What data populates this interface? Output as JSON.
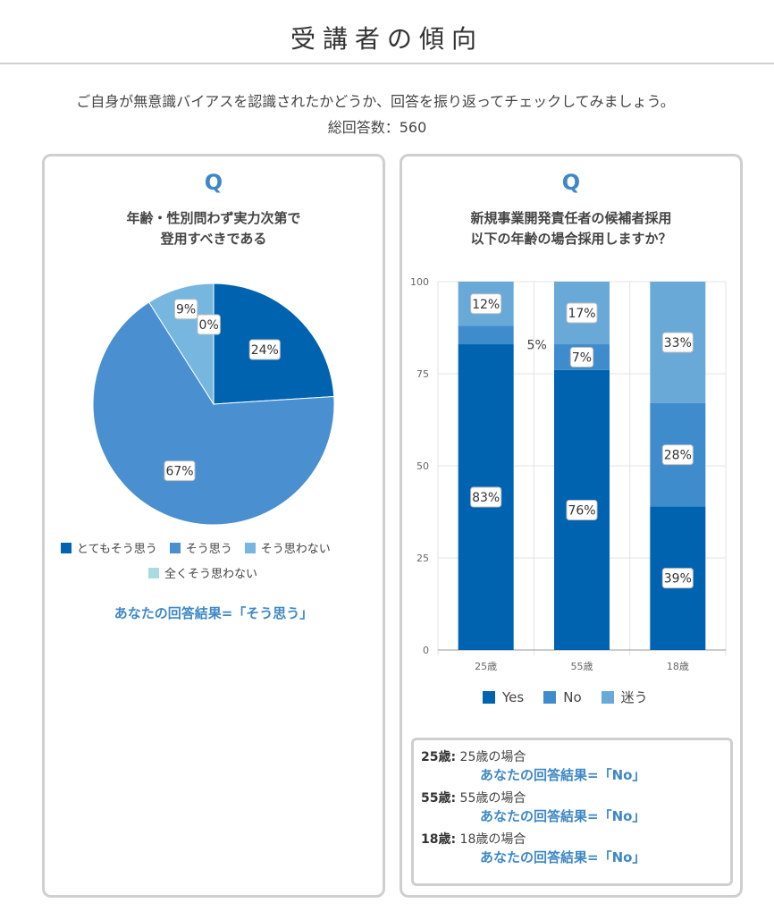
{
  "page": {
    "title": "受講者の傾向",
    "intro": "ご自身が無意識バイアスを認識されたかどうか、回答を振り返ってチェックしてみましょう。",
    "total_label": "総回答数：560"
  },
  "left_card": {
    "q_mark": "Q",
    "question_line1": "年齢・性別問わず実力次第で",
    "question_line2": "登用すべきである",
    "answer": "あなたの回答結果=「そう思う」"
  },
  "right_card": {
    "q_mark": "Q",
    "question_line1": "新規事業開発責任者の候補者採用",
    "question_line2": "以下の年齢の場合採用しますか？",
    "notes": [
      {
        "key": "25歳:",
        "text": " 25歳の場合",
        "answer": "あなたの回答結果=「No」"
      },
      {
        "key": "55歳:",
        "text": " 55歳の場合",
        "answer": "あなたの回答結果=「No」"
      },
      {
        "key": "18歳:",
        "text": " 18歳の場合",
        "answer": "あなたの回答結果=「No」"
      }
    ]
  },
  "chart_data": [
    {
      "type": "pie",
      "title": "年齢・性別問わず実力次第で登用すべきである",
      "categories": [
        "とてもそう思う",
        "そう思う",
        "そう思わない",
        "全くそう思わない"
      ],
      "values": [
        24,
        67,
        9,
        0
      ],
      "labels": [
        "24%",
        "67%",
        "9%",
        "0%"
      ],
      "colors": [
        "#0063b0",
        "#4a8fcf",
        "#76b6df",
        "#a8dce0"
      ],
      "legend_position": "bottom"
    },
    {
      "type": "bar",
      "stacked": true,
      "title": "新規事業開発責任者の候補者採用以下の年齢の場合採用しますか？",
      "categories": [
        "25歳",
        "55歳",
        "18歳"
      ],
      "series": [
        {
          "name": "Yes",
          "values": [
            83,
            76,
            39
          ],
          "labels": [
            "83%",
            "76%",
            "39%"
          ],
          "color": "#0063b0"
        },
        {
          "name": "No",
          "values": [
            5,
            7,
            28
          ],
          "labels": [
            "5%",
            "7%",
            "28%"
          ],
          "color": "#3f8ccc"
        },
        {
          "name": "迷う",
          "values": [
            12,
            17,
            33
          ],
          "labels": [
            "12%",
            "17%",
            "33%"
          ],
          "color": "#69a9d8"
        }
      ],
      "ylim": [
        0,
        100
      ],
      "yticks": [
        "0",
        "25",
        "50",
        "75",
        "100"
      ],
      "grid": true,
      "legend_position": "bottom"
    }
  ]
}
